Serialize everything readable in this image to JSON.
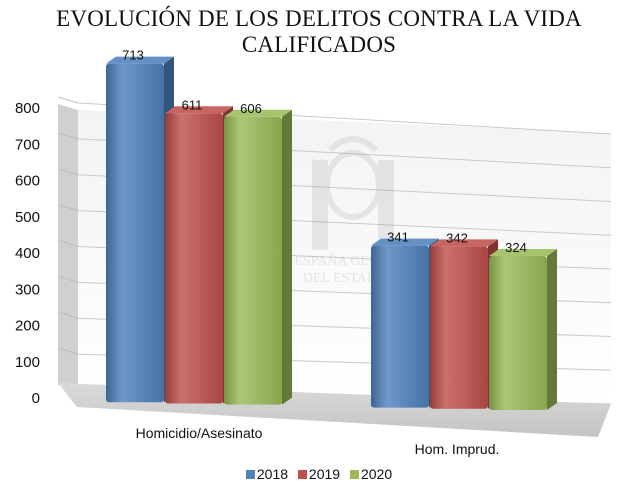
{
  "title_line1": "EVOLUCIÓN DE LOS DELITOS CONTRA LA VIDA",
  "title_line2": "CALIFICADOS",
  "watermark": [
    "ESPAÑA GENERAL",
    "DEL ESTADO"
  ],
  "colors": {
    "2018": "#4f81bd",
    "2019": "#c0504d",
    "2020": "#9bbb59"
  },
  "chart_data": {
    "type": "bar",
    "style": "3d-clustered-column",
    "categories": [
      "Homicidio/Asesinato",
      "Hom. Imprud."
    ],
    "series": [
      {
        "name": "2018",
        "values": [
          713,
          341
        ]
      },
      {
        "name": "2019",
        "values": [
          611,
          342
        ]
      },
      {
        "name": "2020",
        "values": [
          606,
          324
        ]
      }
    ],
    "data_labels": true,
    "ylim": [
      0,
      800
    ],
    "yticks": [
      0,
      100,
      200,
      300,
      400,
      500,
      600,
      700,
      800
    ],
    "grid": true,
    "legend_position": "bottom"
  }
}
